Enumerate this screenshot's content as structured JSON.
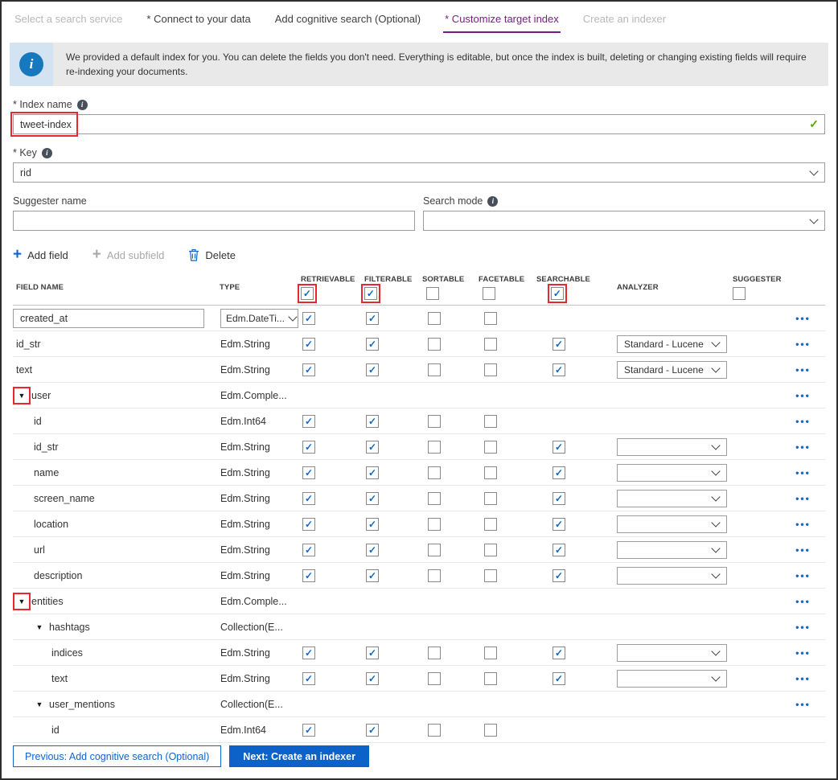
{
  "colors": {
    "accent_blue": "#0d65cd",
    "active_tab_purple": "#7b1e84",
    "annotation_red": "#e8272e",
    "valid_green": "#57a300"
  },
  "tabs": [
    {
      "label": "Select a search service",
      "state": "disabled"
    },
    {
      "label": "* Connect to your data",
      "state": "normal"
    },
    {
      "label": "Add cognitive search (Optional)",
      "state": "normal"
    },
    {
      "label": "* Customize target index",
      "state": "active"
    },
    {
      "label": "Create an indexer",
      "state": "disabled"
    }
  ],
  "banner": {
    "icon": "info-icon",
    "text": "We provided a default index for you. You can delete the fields you don't need. Everything is editable, but once the index is built, deleting or changing existing fields will require re-indexing your documents."
  },
  "form": {
    "index_name": {
      "label": "* Index name",
      "value": "tweet-index",
      "valid": true,
      "callout": true
    },
    "key": {
      "label": "* Key",
      "value": "rid"
    },
    "suggester_name": {
      "label": "Suggester name",
      "value": ""
    },
    "search_mode": {
      "label": "Search mode",
      "value": ""
    }
  },
  "toolbar": {
    "add_field": "Add field",
    "add_subfield": "Add subfield",
    "delete": "Delete"
  },
  "table": {
    "columns": [
      "FIELD NAME",
      "TYPE",
      "RETRIEVABLE",
      "FILTERABLE",
      "SORTABLE",
      "FACETABLE",
      "SEARCHABLE",
      "ANALYZER",
      "SUGGESTER"
    ],
    "header_checkboxes": {
      "retrievable": {
        "checked": true,
        "callout": true
      },
      "filterable": {
        "checked": true,
        "callout": true
      },
      "sortable": {
        "checked": false,
        "callout": false
      },
      "facetable": {
        "checked": false,
        "callout": false
      },
      "searchable": {
        "checked": true,
        "callout": true
      },
      "suggester": {
        "checked": false,
        "callout": false
      }
    },
    "rows": [
      {
        "name": "created_at",
        "name_input": true,
        "indent": 0,
        "arrow": false,
        "arrow_callout": false,
        "type": "Edm.DateTi...",
        "type_dropdown": true,
        "retrievable": "checked",
        "filterable": "checked",
        "sortable": "unchecked",
        "facetable": "unchecked",
        "searchable": "none",
        "analyzer_dropdown": false,
        "analyzer_value": "",
        "ellipsis": true,
        "clipped": false
      },
      {
        "name": "id_str",
        "name_input": false,
        "indent": 0,
        "arrow": false,
        "arrow_callout": false,
        "type": "Edm.String",
        "type_dropdown": false,
        "retrievable": "checked",
        "filterable": "checked",
        "sortable": "unchecked",
        "facetable": "unchecked",
        "searchable": "checked",
        "analyzer_dropdown": true,
        "analyzer_value": "Standard - Lucene",
        "ellipsis": true,
        "clipped": false
      },
      {
        "name": "text",
        "name_input": false,
        "indent": 0,
        "arrow": false,
        "arrow_callout": false,
        "type": "Edm.String",
        "type_dropdown": false,
        "retrievable": "checked",
        "filterable": "checked",
        "sortable": "unchecked",
        "facetable": "unchecked",
        "searchable": "checked",
        "analyzer_dropdown": true,
        "analyzer_value": "Standard - Lucene",
        "ellipsis": true,
        "clipped": false
      },
      {
        "name": "user",
        "name_input": false,
        "indent": 0,
        "arrow": true,
        "arrow_callout": true,
        "type": "Edm.Comple...",
        "type_dropdown": false,
        "retrievable": "none",
        "filterable": "none",
        "sortable": "none",
        "facetable": "none",
        "searchable": "none",
        "analyzer_dropdown": false,
        "analyzer_value": "",
        "ellipsis": true,
        "clipped": false
      },
      {
        "name": "id",
        "name_input": false,
        "indent": 1,
        "arrow": false,
        "arrow_callout": false,
        "type": "Edm.Int64",
        "type_dropdown": false,
        "retrievable": "checked",
        "filterable": "checked",
        "sortable": "unchecked",
        "facetable": "unchecked",
        "searchable": "none",
        "analyzer_dropdown": false,
        "analyzer_value": "",
        "ellipsis": true,
        "clipped": false
      },
      {
        "name": "id_str",
        "name_input": false,
        "indent": 1,
        "arrow": false,
        "arrow_callout": false,
        "type": "Edm.String",
        "type_dropdown": false,
        "retrievable": "checked",
        "filterable": "checked",
        "sortable": "unchecked",
        "facetable": "unchecked",
        "searchable": "checked",
        "analyzer_dropdown": true,
        "analyzer_value": "",
        "ellipsis": true,
        "clipped": false
      },
      {
        "name": "name",
        "name_input": false,
        "indent": 1,
        "arrow": false,
        "arrow_callout": false,
        "type": "Edm.String",
        "type_dropdown": false,
        "retrievable": "checked",
        "filterable": "checked",
        "sortable": "unchecked",
        "facetable": "unchecked",
        "searchable": "checked",
        "analyzer_dropdown": true,
        "analyzer_value": "",
        "ellipsis": true,
        "clipped": false
      },
      {
        "name": "screen_name",
        "name_input": false,
        "indent": 1,
        "arrow": false,
        "arrow_callout": false,
        "type": "Edm.String",
        "type_dropdown": false,
        "retrievable": "checked",
        "filterable": "checked",
        "sortable": "unchecked",
        "facetable": "unchecked",
        "searchable": "checked",
        "analyzer_dropdown": true,
        "analyzer_value": "",
        "ellipsis": true,
        "clipped": false
      },
      {
        "name": "location",
        "name_input": false,
        "indent": 1,
        "arrow": false,
        "arrow_callout": false,
        "type": "Edm.String",
        "type_dropdown": false,
        "retrievable": "checked",
        "filterable": "checked",
        "sortable": "unchecked",
        "facetable": "unchecked",
        "searchable": "checked",
        "analyzer_dropdown": true,
        "analyzer_value": "",
        "ellipsis": true,
        "clipped": false
      },
      {
        "name": "url",
        "name_input": false,
        "indent": 1,
        "arrow": false,
        "arrow_callout": false,
        "type": "Edm.String",
        "type_dropdown": false,
        "retrievable": "checked",
        "filterable": "checked",
        "sortable": "unchecked",
        "facetable": "unchecked",
        "searchable": "checked",
        "analyzer_dropdown": true,
        "analyzer_value": "",
        "ellipsis": true,
        "clipped": false
      },
      {
        "name": "description",
        "name_input": false,
        "indent": 1,
        "arrow": false,
        "arrow_callout": false,
        "type": "Edm.String",
        "type_dropdown": false,
        "retrievable": "checked",
        "filterable": "checked",
        "sortable": "unchecked",
        "facetable": "unchecked",
        "searchable": "checked",
        "analyzer_dropdown": true,
        "analyzer_value": "",
        "ellipsis": true,
        "clipped": false
      },
      {
        "name": "entities",
        "name_input": false,
        "indent": 0,
        "arrow": true,
        "arrow_callout": true,
        "type": "Edm.Comple...",
        "type_dropdown": false,
        "retrievable": "none",
        "filterable": "none",
        "sortable": "none",
        "facetable": "none",
        "searchable": "none",
        "analyzer_dropdown": false,
        "analyzer_value": "",
        "ellipsis": true,
        "clipped": false
      },
      {
        "name": "hashtags",
        "name_input": false,
        "indent": 1,
        "arrow": true,
        "arrow_callout": false,
        "type": "Collection(E...",
        "type_dropdown": false,
        "retrievable": "none",
        "filterable": "none",
        "sortable": "none",
        "facetable": "none",
        "searchable": "none",
        "analyzer_dropdown": false,
        "analyzer_value": "",
        "ellipsis": true,
        "clipped": false
      },
      {
        "name": "indices",
        "name_input": false,
        "indent": 2,
        "arrow": false,
        "arrow_callout": false,
        "type": "Edm.String",
        "type_dropdown": false,
        "retrievable": "checked",
        "filterable": "checked",
        "sortable": "unchecked",
        "facetable": "unchecked",
        "searchable": "checked",
        "analyzer_dropdown": true,
        "analyzer_value": "",
        "ellipsis": true,
        "clipped": false
      },
      {
        "name": "text",
        "name_input": false,
        "indent": 2,
        "arrow": false,
        "arrow_callout": false,
        "type": "Edm.String",
        "type_dropdown": false,
        "retrievable": "checked",
        "filterable": "checked",
        "sortable": "unchecked",
        "facetable": "unchecked",
        "searchable": "checked",
        "analyzer_dropdown": true,
        "analyzer_value": "",
        "ellipsis": true,
        "clipped": false
      },
      {
        "name": "user_mentions",
        "name_input": false,
        "indent": 1,
        "arrow": true,
        "arrow_callout": false,
        "type": "Collection(E...",
        "type_dropdown": false,
        "retrievable": "none",
        "filterable": "none",
        "sortable": "none",
        "facetable": "none",
        "searchable": "none",
        "analyzer_dropdown": false,
        "analyzer_value": "",
        "ellipsis": true,
        "clipped": false
      },
      {
        "name": "id",
        "name_input": false,
        "indent": 2,
        "arrow": false,
        "arrow_callout": false,
        "type": "Edm.Int64",
        "type_dropdown": false,
        "retrievable": "checked",
        "filterable": "checked",
        "sortable": "unchecked",
        "facetable": "unchecked",
        "searchable": "none",
        "analyzer_dropdown": false,
        "analyzer_value": "",
        "ellipsis": false,
        "clipped": true
      }
    ]
  },
  "footer": {
    "previous_label": "Previous: Add cognitive search (Optional)",
    "next_label": "Next: Create an indexer"
  }
}
